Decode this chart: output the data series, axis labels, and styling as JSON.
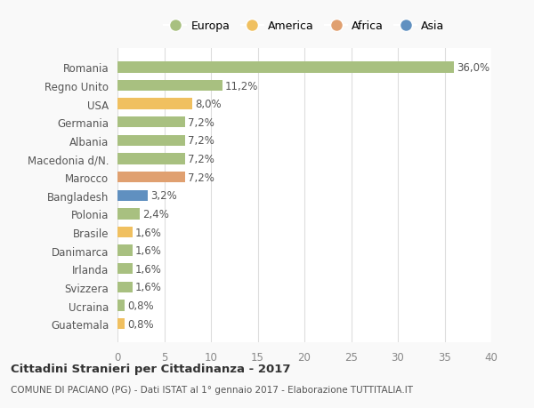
{
  "countries": [
    "Romania",
    "Regno Unito",
    "USA",
    "Germania",
    "Albania",
    "Macedonia d/N.",
    "Marocco",
    "Bangladesh",
    "Polonia",
    "Brasile",
    "Danimarca",
    "Irlanda",
    "Svizzera",
    "Ucraina",
    "Guatemala"
  ],
  "values": [
    36.0,
    11.2,
    8.0,
    7.2,
    7.2,
    7.2,
    7.2,
    3.2,
    2.4,
    1.6,
    1.6,
    1.6,
    1.6,
    0.8,
    0.8
  ],
  "labels": [
    "36,0%",
    "11,2%",
    "8,0%",
    "7,2%",
    "7,2%",
    "7,2%",
    "7,2%",
    "3,2%",
    "2,4%",
    "1,6%",
    "1,6%",
    "1,6%",
    "1,6%",
    "0,8%",
    "0,8%"
  ],
  "continents": [
    "Europa",
    "Europa",
    "America",
    "Europa",
    "Europa",
    "Europa",
    "Africa",
    "Asia",
    "Europa",
    "America",
    "Europa",
    "Europa",
    "Europa",
    "Europa",
    "America"
  ],
  "colors": {
    "Europa": "#a8c080",
    "America": "#f0c060",
    "Africa": "#e0a070",
    "Asia": "#6090c0"
  },
  "legend_order": [
    "Europa",
    "America",
    "Africa",
    "Asia"
  ],
  "xlim": [
    0,
    40
  ],
  "xticks": [
    0,
    5,
    10,
    15,
    20,
    25,
    30,
    35,
    40
  ],
  "title": "Cittadini Stranieri per Cittadinanza - 2017",
  "subtitle": "COMUNE DI PACIANO (PG) - Dati ISTAT al 1° gennaio 2017 - Elaborazione TUTTITALIA.IT",
  "bg_color": "#f9f9f9",
  "bar_bg_color": "#ffffff",
  "grid_color": "#dddddd",
  "label_fontsize": 8.5,
  "tick_fontsize": 8.5
}
